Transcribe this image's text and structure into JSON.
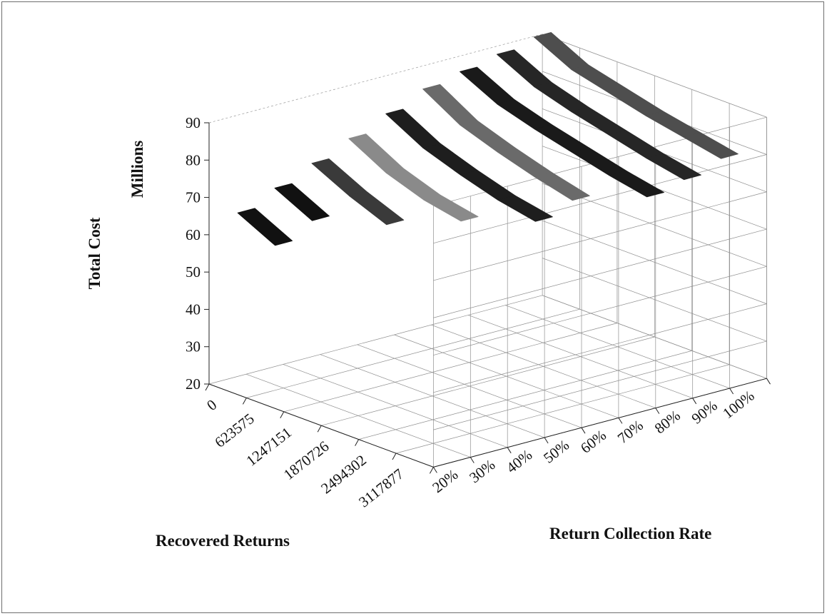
{
  "chart_data": {
    "type": "3d-line",
    "x_axis": {
      "label": "Recovered Returns",
      "categories": [
        "0",
        "623575",
        "1247151",
        "1870726",
        "2494302",
        "3117877"
      ]
    },
    "y_axis": {
      "label": "Return Collection Rate",
      "categories": [
        "20%",
        "30%",
        "40%",
        "50%",
        "60%",
        "70%",
        "80%",
        "90%",
        "100%"
      ]
    },
    "z_axis": {
      "label": "Total Cost",
      "unit_label": "Millions",
      "ticks": [
        "20",
        "30",
        "40",
        "50",
        "60",
        "70",
        "80",
        "90"
      ],
      "range": [
        20,
        90
      ]
    },
    "series": [
      {
        "category": "20%",
        "color": "#111111",
        "values": [
          67,
          62
        ]
      },
      {
        "category": "30%",
        "color": "#111111",
        "values": [
          71,
          66
        ]
      },
      {
        "category": "40%",
        "color": "#3a3a3a",
        "values": [
          75,
          70,
          66
        ]
      },
      {
        "category": "50%",
        "color": "#8a8a8a",
        "values": [
          79,
          73.5,
          70,
          68
        ]
      },
      {
        "category": "60%",
        "color": "#1e1e1e",
        "values": [
          83,
          77.5,
          74,
          71,
          69
        ]
      },
      {
        "category": "70%",
        "color": "#6a6a6a",
        "values": [
          87,
          81,
          77.5,
          74.5,
          72
        ]
      },
      {
        "category": "80%",
        "color": "#1a1a1a",
        "values": [
          89,
          84,
          81,
          78.5,
          76,
          74
        ]
      },
      {
        "category": "90%",
        "color": "#262626",
        "values": [
          91,
          86,
          83,
          80.5,
          78,
          76
        ]
      },
      {
        "category": "100%",
        "color": "#4e4e4e",
        "values": [
          93,
          88,
          85.5,
          83,
          81,
          79
        ]
      }
    ]
  }
}
